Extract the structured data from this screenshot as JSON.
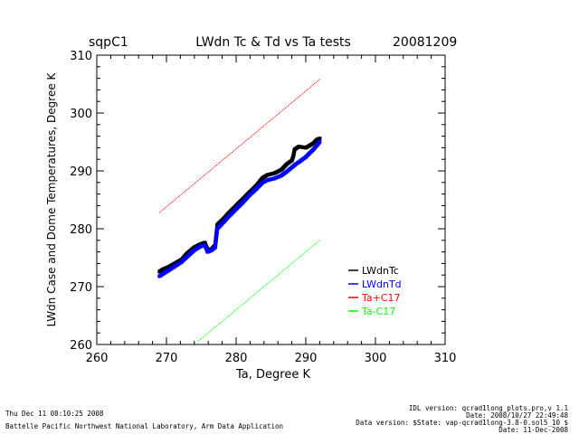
{
  "chart_data": {
    "type": "scatter",
    "site": "sqpC1",
    "title": "LWdn Tc & Td vs Ta tests",
    "date": "20081209",
    "xlabel": "Ta, Degree K",
    "ylabel": "LWdn Case and Dome Temperatures, Degree K",
    "xlim": [
      260,
      310
    ],
    "ylim": [
      260,
      310
    ],
    "xticks": [
      "260",
      "270",
      "280",
      "290",
      "300",
      "310"
    ],
    "yticks": [
      "260",
      "270",
      "280",
      "290",
      "300",
      "310"
    ],
    "grid": false,
    "legend_position": "lower-right",
    "series": [
      {
        "name": "LWdnTc",
        "color": "#000000",
        "points": [
          [
            269.0,
            272.6
          ],
          [
            269.5,
            273.0
          ],
          [
            270.3,
            273.4
          ],
          [
            271.2,
            274.0
          ],
          [
            272.2,
            274.7
          ],
          [
            273.0,
            275.8
          ],
          [
            274.0,
            276.8
          ],
          [
            274.8,
            277.3
          ],
          [
            275.5,
            277.6
          ],
          [
            275.9,
            276.4
          ],
          [
            276.5,
            276.5
          ],
          [
            277.0,
            277.2
          ],
          [
            277.3,
            280.7
          ],
          [
            278.0,
            281.5
          ],
          [
            279.0,
            282.8
          ],
          [
            280.0,
            284.0
          ],
          [
            281.0,
            285.2
          ],
          [
            282.0,
            286.4
          ],
          [
            283.0,
            287.6
          ],
          [
            283.8,
            288.8
          ],
          [
            284.5,
            289.3
          ],
          [
            285.5,
            289.6
          ],
          [
            286.5,
            290.2
          ],
          [
            287.3,
            291.2
          ],
          [
            288.0,
            291.8
          ],
          [
            288.2,
            292.5
          ],
          [
            288.4,
            293.7
          ],
          [
            289.0,
            294.2
          ],
          [
            290.0,
            294.0
          ],
          [
            291.0,
            294.7
          ],
          [
            291.6,
            295.4
          ],
          [
            292.0,
            295.6
          ]
        ]
      },
      {
        "name": "LWdnTd",
        "color": "#0000ff",
        "points": [
          [
            269.0,
            271.8
          ],
          [
            269.5,
            272.2
          ],
          [
            270.3,
            272.8
          ],
          [
            271.2,
            273.5
          ],
          [
            272.2,
            274.3
          ],
          [
            273.0,
            275.2
          ],
          [
            274.0,
            276.3
          ],
          [
            274.8,
            276.9
          ],
          [
            275.5,
            277.2
          ],
          [
            275.9,
            276.0
          ],
          [
            276.5,
            276.3
          ],
          [
            277.0,
            276.8
          ],
          [
            277.3,
            280.0
          ],
          [
            278.0,
            280.9
          ],
          [
            279.0,
            282.2
          ],
          [
            280.0,
            283.4
          ],
          [
            281.0,
            284.6
          ],
          [
            282.0,
            285.9
          ],
          [
            283.0,
            287.0
          ],
          [
            283.8,
            288.0
          ],
          [
            284.5,
            288.4
          ],
          [
            285.5,
            288.7
          ],
          [
            286.5,
            289.2
          ],
          [
            287.3,
            289.9
          ],
          [
            288.0,
            290.6
          ],
          [
            288.6,
            291.2
          ],
          [
            289.0,
            291.5
          ],
          [
            290.0,
            292.4
          ],
          [
            291.0,
            293.6
          ],
          [
            291.6,
            294.4
          ],
          [
            292.0,
            295.0
          ]
        ]
      },
      {
        "name": "Ta+C17",
        "color": "#ff0000",
        "x_range": [
          269.0,
          292.0
        ],
        "offset": 13.8
      },
      {
        "name": "Ta-C17",
        "color": "#00ff00",
        "x_range": [
          274.5,
          292.0
        ],
        "offset": -14.0
      }
    ]
  },
  "footer": {
    "timestamp": "Thu Dec 11 08:10:25 2008",
    "institution": "Battelle Pacific Northwest National Laboratory, Arm Data Application",
    "idl_version": "IDL version: qcrad1long_plots.pro,v 1.1",
    "idl_date": "Date: 2008/10/27 22:49:48",
    "data_version": "Data version: $State: vap-qcrad1long-3.8-0.sol5_10 $",
    "data_date": "Date: 11-Dec-2008"
  }
}
